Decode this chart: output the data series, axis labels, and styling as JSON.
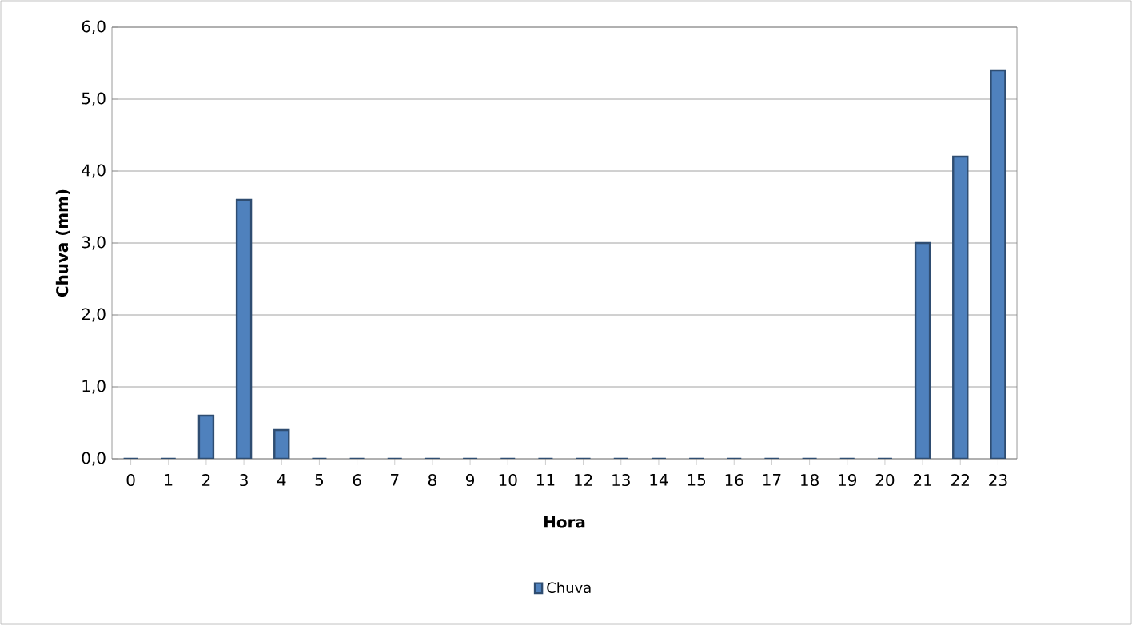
{
  "chart_data": {
    "type": "bar",
    "xlabel": "Hora",
    "ylabel": "Chuva (mm)",
    "categories": [
      "0",
      "1",
      "2",
      "3",
      "4",
      "5",
      "6",
      "7",
      "8",
      "9",
      "10",
      "11",
      "12",
      "13",
      "14",
      "15",
      "16",
      "17",
      "18",
      "19",
      "20",
      "21",
      "22",
      "23"
    ],
    "series": [
      {
        "name": "Chuva",
        "color": "#4f81bd",
        "values": [
          0,
          0,
          0.6,
          3.6,
          0.4,
          0,
          0,
          0,
          0,
          0,
          0,
          0,
          0,
          0,
          0,
          0,
          0,
          0,
          0,
          0,
          0,
          3.0,
          4.2,
          5.4
        ]
      }
    ],
    "ylim": [
      0,
      6
    ],
    "yticks": [
      {
        "value": 0,
        "label": "0,0"
      },
      {
        "value": 1,
        "label": "1,0"
      },
      {
        "value": 2,
        "label": "2,0"
      },
      {
        "value": 3,
        "label": "3,0"
      },
      {
        "value": 4,
        "label": "4,0"
      },
      {
        "value": 5,
        "label": "5,0"
      },
      {
        "value": 6,
        "label": "6,0"
      }
    ],
    "grid": "y",
    "legend": "bottom"
  }
}
